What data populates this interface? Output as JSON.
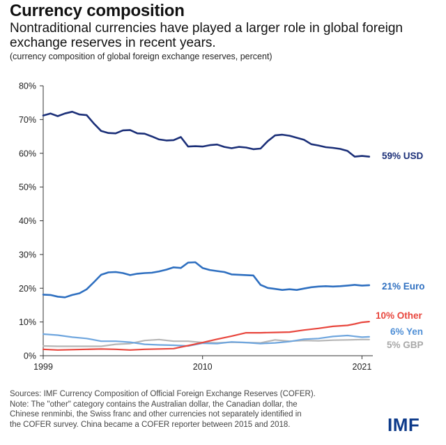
{
  "header": {
    "title": "Currency composition",
    "subtitle": "Nontraditional currencies have played a larger role in global foreign exchange reserves in recent years.",
    "note": "(currency composition of global foreign exchange reserves, percent)"
  },
  "footer": {
    "lines": [
      "Sources: IMF Currency Composition of Official Foreign Exchange Reserves (COFER).",
      "Note: The \"other\" category contains the Australian dollar, the Canadian dollar, the",
      "Chinese renminbi, the Swiss franc and other currencies not separately identified in",
      "the COFER survey. China became a COFER reporter between 2015 and 2018."
    ],
    "brand": "IMF"
  },
  "chart_data": {
    "type": "line",
    "title": "Currency composition",
    "xlabel": "",
    "ylabel": "",
    "xlim": [
      1999,
      2021.75
    ],
    "ylim": [
      0,
      80
    ],
    "yticks": [
      0,
      10,
      20,
      30,
      40,
      50,
      60,
      70,
      80
    ],
    "ytick_labels": [
      "0%",
      "10%",
      "20%",
      "30%",
      "40%",
      "50%",
      "60%",
      "70%",
      "80%"
    ],
    "xticks": [
      1999,
      2010,
      2021
    ],
    "xtick_labels": [
      "1999",
      "2010",
      "2021"
    ],
    "grid": false,
    "legend": "inline-right",
    "series": [
      {
        "name": "USD",
        "end_label": "59% USD",
        "color": "#1b2f78",
        "x": [
          1999,
          1999.5,
          2000,
          2000.5,
          2001,
          2001.5,
          2002,
          2002.5,
          2003,
          2003.5,
          2004,
          2004.5,
          2005,
          2005.5,
          2006,
          2006.5,
          2007,
          2007.5,
          2008,
          2008.5,
          2009,
          2009.5,
          2010,
          2010.5,
          2011,
          2011.5,
          2012,
          2012.5,
          2013,
          2013.5,
          2014,
          2014.5,
          2015,
          2015.5,
          2016,
          2016.5,
          2017,
          2017.5,
          2018,
          2018.5,
          2019,
          2019.5,
          2020,
          2020.5,
          2021,
          2021.5
        ],
        "values": [
          71.2,
          71.8,
          71.0,
          71.8,
          72.3,
          71.5,
          71.3,
          68.8,
          66.6,
          66.0,
          65.9,
          66.8,
          66.9,
          65.9,
          65.8,
          65.0,
          64.1,
          63.8,
          63.9,
          64.8,
          62.0,
          62.1,
          62.0,
          62.4,
          62.6,
          61.9,
          61.5,
          61.9,
          61.7,
          61.2,
          61.4,
          63.6,
          65.3,
          65.5,
          65.2,
          64.6,
          64.0,
          62.7,
          62.3,
          61.8,
          61.6,
          61.3,
          60.7,
          59.0,
          59.2,
          59.0
        ]
      },
      {
        "name": "Euro",
        "end_label": "21% Euro",
        "color": "#2e6fc0",
        "x": [
          1999,
          1999.5,
          2000,
          2000.5,
          2001,
          2001.5,
          2002,
          2002.5,
          2003,
          2003.5,
          2004,
          2004.5,
          2005,
          2005.5,
          2006,
          2006.5,
          2007,
          2007.5,
          2008,
          2008.5,
          2009,
          2009.5,
          2010,
          2010.5,
          2011,
          2011.5,
          2012,
          2012.5,
          2013,
          2013.5,
          2014,
          2014.5,
          2015,
          2015.5,
          2016,
          2016.5,
          2017,
          2017.5,
          2018,
          2018.5,
          2019,
          2019.5,
          2020,
          2020.5,
          2021,
          2021.5
        ],
        "values": [
          18.1,
          18.0,
          17.5,
          17.3,
          18.0,
          18.5,
          19.7,
          21.8,
          24.0,
          24.7,
          24.8,
          24.5,
          23.9,
          24.3,
          24.5,
          24.6,
          25.0,
          25.5,
          26.2,
          26.0,
          27.6,
          27.7,
          26.0,
          25.4,
          25.1,
          24.8,
          24.1,
          24.0,
          23.9,
          23.8,
          21.0,
          20.1,
          19.8,
          19.5,
          19.7,
          19.5,
          19.9,
          20.3,
          20.5,
          20.6,
          20.5,
          20.6,
          20.8,
          21.0,
          20.8,
          20.9
        ]
      },
      {
        "name": "Other",
        "end_label": "10% Other",
        "color": "#e8463d",
        "x": [
          1999,
          2000,
          2001,
          2002,
          2003,
          2004,
          2005,
          2006,
          2007,
          2008,
          2009,
          2010,
          2011,
          2012,
          2013,
          2014,
          2015,
          2016,
          2017,
          2018,
          2019,
          2020,
          2020.5,
          2021,
          2021.5
        ],
        "values": [
          1.9,
          1.7,
          1.8,
          1.9,
          2.0,
          1.9,
          1.7,
          1.9,
          2.0,
          2.1,
          3.0,
          3.9,
          4.9,
          5.8,
          6.8,
          6.8,
          6.9,
          7.0,
          7.6,
          8.1,
          8.7,
          9.0,
          9.4,
          9.9,
          10.1
        ]
      },
      {
        "name": "Yen",
        "end_label": "6% Yen",
        "color": "#6fa6de",
        "x": [
          1999,
          2000,
          2001,
          2002,
          2003,
          2004,
          2005,
          2006,
          2007,
          2008,
          2009,
          2010,
          2011,
          2012,
          2013,
          2014,
          2015,
          2016,
          2017,
          2018,
          2019,
          2020,
          2021,
          2021.5
        ],
        "values": [
          6.4,
          6.1,
          5.5,
          5.1,
          4.3,
          4.3,
          4.0,
          3.4,
          3.2,
          3.1,
          2.9,
          3.7,
          3.6,
          4.1,
          3.9,
          3.6,
          3.8,
          4.2,
          4.9,
          5.1,
          5.7,
          6.0,
          5.5,
          5.6
        ]
      },
      {
        "name": "GBP",
        "end_label": "5% GBP",
        "color": "#b5b5b5",
        "x": [
          1999,
          2000,
          2001,
          2002,
          2003,
          2004,
          2005,
          2006,
          2007,
          2008,
          2009,
          2010,
          2011,
          2012,
          2013,
          2014,
          2015,
          2016,
          2017,
          2018,
          2019,
          2020,
          2021,
          2021.5
        ],
        "values": [
          2.9,
          2.8,
          2.8,
          2.8,
          2.8,
          3.4,
          3.6,
          4.5,
          4.8,
          4.3,
          4.3,
          3.9,
          3.8,
          4.0,
          3.9,
          3.8,
          4.7,
          4.3,
          4.5,
          4.4,
          4.6,
          4.7,
          4.8,
          4.8
        ]
      }
    ]
  }
}
